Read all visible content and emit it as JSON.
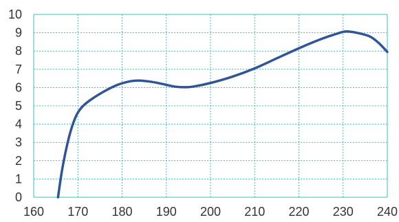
{
  "chart_data": {
    "type": "line",
    "title": "",
    "xlabel": "",
    "ylabel": "",
    "xlim": [
      160,
      240
    ],
    "ylim": [
      0,
      10
    ],
    "x_ticks": [
      160,
      170,
      180,
      190,
      200,
      210,
      220,
      230,
      240
    ],
    "y_ticks": [
      0,
      1,
      2,
      3,
      4,
      5,
      6,
      7,
      8,
      9,
      10
    ],
    "grid": true,
    "legend": "none",
    "colors": {
      "line": "#2f5597",
      "grid": "#3bbfbf",
      "text": "#333333"
    },
    "series": [
      {
        "x": [
          165.5,
          166.5,
          168,
          169.5,
          171,
          173,
          176,
          179,
          182,
          184,
          187,
          190,
          192,
          194,
          196,
          200,
          205,
          210,
          215,
          220,
          225,
          228,
          230,
          231,
          233,
          236,
          238,
          240
        ],
        "y": [
          0,
          1.6,
          3.3,
          4.4,
          4.95,
          5.35,
          5.8,
          6.15,
          6.35,
          6.38,
          6.3,
          6.15,
          6.05,
          6.02,
          6.05,
          6.25,
          6.6,
          7.05,
          7.6,
          8.15,
          8.65,
          8.9,
          9.05,
          9.07,
          9.0,
          8.8,
          8.45,
          7.95
        ]
      }
    ]
  }
}
